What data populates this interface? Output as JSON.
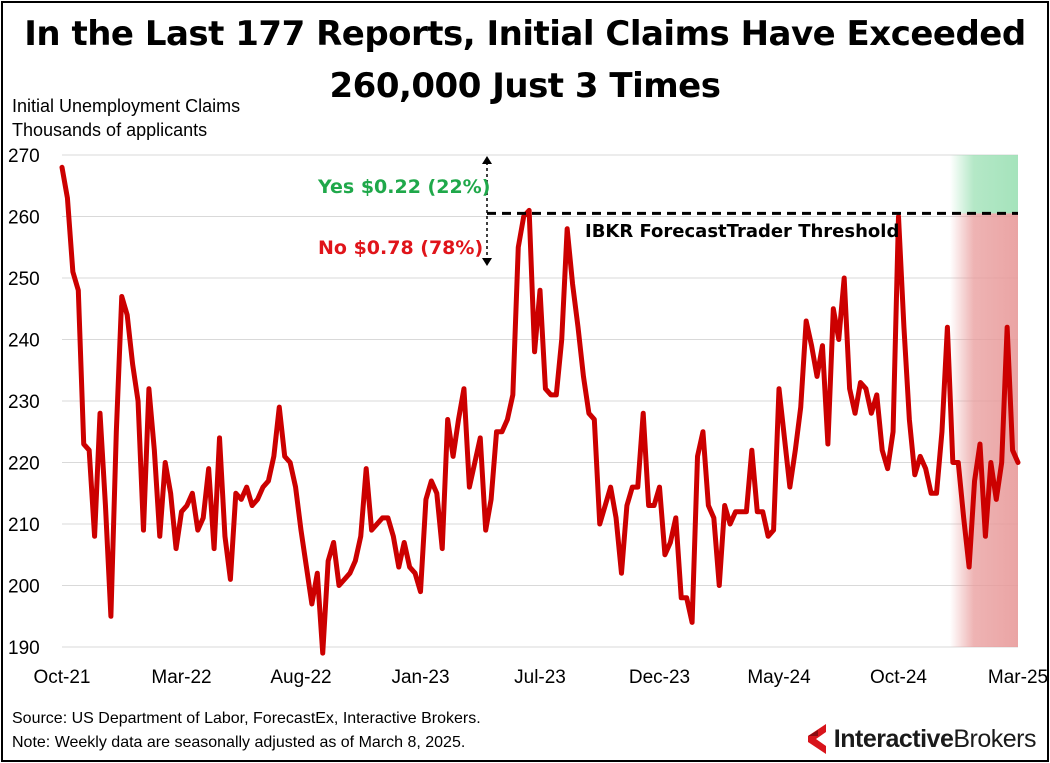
{
  "title_line1": "In the Last 177 Reports, Initial Claims Have Exceeded",
  "title_line2": "260,000 Just 3 Times",
  "units_line1": "Initial Unemployment Claims",
  "units_line2": "Thousands of applicants",
  "annotations": {
    "yes": "Yes $0.22 (22%)",
    "no": "No $0.78 (78%)",
    "threshold": "IBKR ForecastTrader Threshold"
  },
  "footer": {
    "source": "Source: US Department of Labor, ForecastEx, Interactive Brokers.",
    "note": "Note: Weekly data are seasonally adjusted as of March 8, 2025."
  },
  "logo": {
    "part1": "Interactive",
    "part2": "Brokers"
  },
  "colors": {
    "line": "#cc0000",
    "yes": "#1fa84a",
    "no": "#e0141a",
    "yes_zone": "#9be0b4",
    "no_zone": "#e89a9a",
    "logo_red": "#d8141b"
  },
  "chart_data": {
    "type": "line",
    "title": "In the Last 177 Reports, Initial Claims Have Exceeded 260,000 Just 3 Times",
    "ylabel": "Initial Unemployment Claims, Thousands of applicants",
    "ylim": [
      190,
      270
    ],
    "yticks": [
      190,
      200,
      210,
      220,
      230,
      240,
      250,
      260,
      270
    ],
    "xtick_labels": [
      "Oct-21",
      "Mar-22",
      "Aug-22",
      "Jan-23",
      "Jul-23",
      "Dec-23",
      "May-24",
      "Oct-24",
      "Mar-25"
    ],
    "threshold": 260.5,
    "grid": true,
    "series": [
      {
        "values": [
          268,
          263,
          251,
          248,
          223,
          222,
          208,
          228,
          213,
          195,
          225,
          247,
          244,
          236,
          230,
          209,
          232,
          222,
          208,
          220,
          215,
          206,
          212,
          213,
          215,
          209,
          211,
          219,
          206,
          224,
          208,
          201,
          215,
          214,
          216,
          213,
          214,
          216,
          217,
          221,
          229,
          221,
          220,
          216,
          209,
          203,
          197,
          202,
          189,
          204,
          207,
          200,
          201,
          202,
          204,
          208,
          219,
          209,
          210,
          211,
          211,
          208,
          203,
          207,
          203,
          202,
          199,
          214,
          217,
          215,
          206,
          227,
          221,
          227,
          232,
          216,
          220,
          224,
          209,
          214,
          225,
          225,
          227,
          231,
          255,
          260,
          261,
          238,
          248,
          232,
          231,
          231,
          240,
          258,
          249,
          242,
          234,
          228,
          227,
          210,
          213,
          216,
          211,
          202,
          213,
          216,
          216,
          228,
          213,
          213,
          216,
          205,
          207,
          211,
          198,
          198,
          194,
          221,
          225,
          213,
          211,
          200,
          213,
          210,
          212,
          212,
          212,
          222,
          212,
          212,
          208,
          209,
          232,
          224,
          216,
          222,
          229,
          243,
          239,
          234,
          239,
          223,
          245,
          240,
          250,
          232,
          228,
          233,
          232,
          228,
          231,
          222,
          219,
          225,
          260,
          242,
          227,
          218,
          221,
          219,
          215,
          215,
          225,
          242,
          220,
          220,
          211,
          203,
          217,
          223,
          208,
          220,
          214,
          220,
          242,
          222,
          220
        ]
      }
    ]
  }
}
